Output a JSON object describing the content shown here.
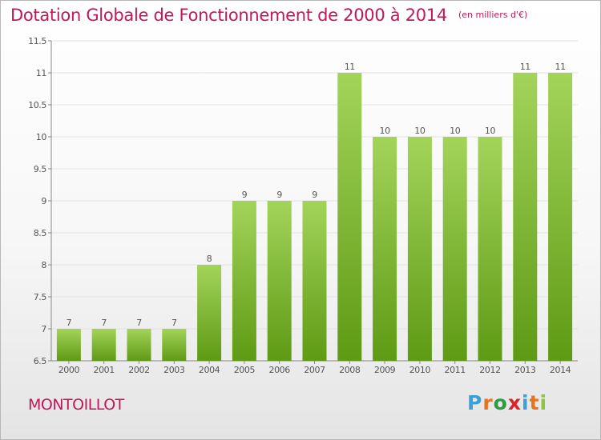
{
  "title": "Dotation Globale de Fonctionnement de 2000 à 2014",
  "unit_note": "(en milliers d'€)",
  "commune": "MONTOILLOT",
  "logo": {
    "text": "Proxiti",
    "letter_colors": [
      "#3aa0d8",
      "#e8731a",
      "#2c9c3c",
      "#d8232a",
      "#3aa0d8",
      "#e8731a",
      "#8cc63e"
    ]
  },
  "colors": {
    "title": "#c0185a",
    "bar_top": "#a3d45a",
    "bar_bottom": "#5e9a14"
  },
  "chart_data": {
    "type": "bar",
    "categories": [
      "2000",
      "2001",
      "2002",
      "2003",
      "2004",
      "2005",
      "2006",
      "2007",
      "2008",
      "2009",
      "2010",
      "2011",
      "2012",
      "2013",
      "2014"
    ],
    "values": [
      7,
      7,
      7,
      7,
      8,
      9,
      9,
      9,
      11,
      10,
      10,
      10,
      10,
      11,
      11
    ],
    "data_labels": [
      "7",
      "7",
      "7",
      "7",
      "8",
      "9",
      "9",
      "9",
      "11",
      "10",
      "10",
      "10",
      "10",
      "11",
      "11"
    ],
    "ylim": [
      6.5,
      11.5
    ],
    "yticks": [
      6.5,
      7,
      7.5,
      8,
      8.5,
      9,
      9.5,
      10,
      10.5,
      11,
      11.5
    ],
    "ytick_labels": [
      "6.5",
      "7",
      "7.5",
      "8",
      "8.5",
      "9",
      "9.5",
      "10",
      "10.5",
      "11",
      "11.5"
    ],
    "grid": "horizontal, light",
    "xlabel": "",
    "ylabel": ""
  }
}
